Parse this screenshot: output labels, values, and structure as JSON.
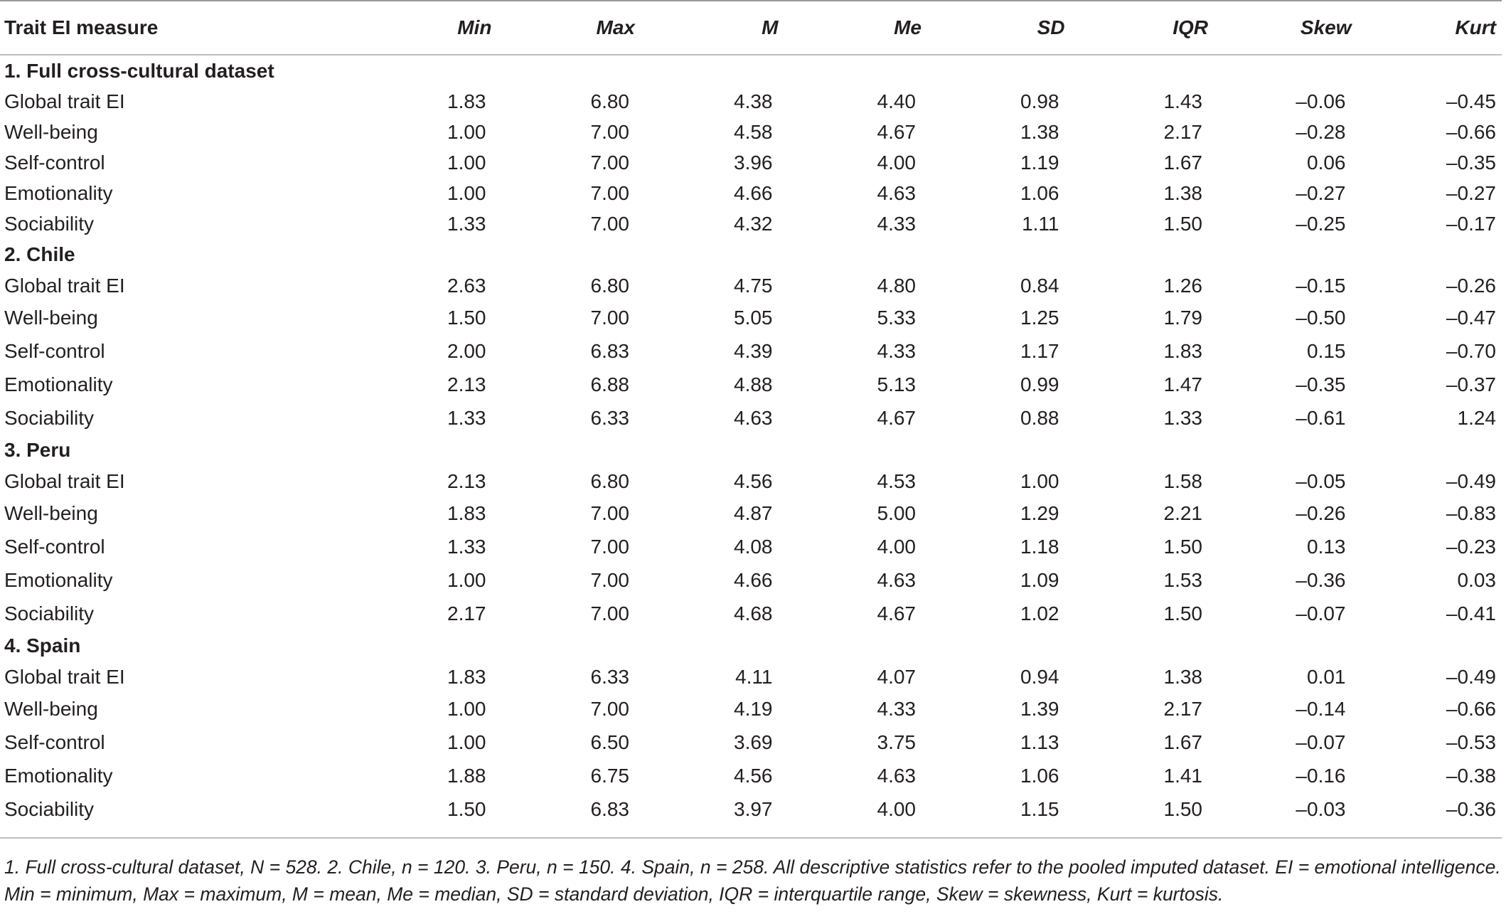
{
  "table": {
    "headers": [
      "Trait EI measure",
      "Min",
      "Max",
      "M",
      "Me",
      "SD",
      "IQR",
      "Skew",
      "Kurt"
    ],
    "groups": [
      {
        "label": "1. Full cross-cultural dataset",
        "rows": [
          {
            "label": "Global trait EI",
            "values": [
              "1.83",
              "6.80",
              "4.38",
              "4.40",
              "0.98",
              "1.43",
              "–0.06",
              "–0.45"
            ]
          },
          {
            "label": "Well-being",
            "values": [
              "1.00",
              "7.00",
              "4.58",
              "4.67",
              "1.38",
              "2.17",
              "–0.28",
              "–0.66"
            ]
          },
          {
            "label": "Self-control",
            "values": [
              "1.00",
              "7.00",
              "3.96",
              "4.00",
              "1.19",
              "1.67",
              "0.06",
              "–0.35"
            ]
          },
          {
            "label": "Emotionality",
            "values": [
              "1.00",
              "7.00",
              "4.66",
              "4.63",
              "1.06",
              "1.38",
              "–0.27",
              "–0.27"
            ]
          },
          {
            "label": "Sociability",
            "values": [
              "1.33",
              "7.00",
              "4.32",
              "4.33",
              "1.11",
              "1.50",
              "–0.25",
              "–0.17"
            ]
          }
        ]
      },
      {
        "label": "2. Chile",
        "rows": [
          {
            "label": "Global trait EI",
            "values": [
              "2.63",
              "6.80",
              "4.75",
              "4.80",
              "0.84",
              "1.26",
              "–0.15",
              "–0.26"
            ]
          },
          {
            "label": "Well-being",
            "values": [
              "1.50",
              "7.00",
              "5.05",
              "5.33",
              "1.25",
              "1.79",
              "–0.50",
              "–0.47"
            ]
          },
          {
            "label": "Self-control",
            "values": [
              "2.00",
              "6.83",
              "4.39",
              "4.33",
              "1.17",
              "1.83",
              "0.15",
              "–0.70"
            ]
          },
          {
            "label": "Emotionality",
            "values": [
              "2.13",
              "6.88",
              "4.88",
              "5.13",
              "0.99",
              "1.47",
              "–0.35",
              "–0.37"
            ]
          },
          {
            "label": "Sociability",
            "values": [
              "1.33",
              "6.33",
              "4.63",
              "4.67",
              "0.88",
              "1.33",
              "–0.61",
              "1.24"
            ]
          }
        ]
      },
      {
        "label": "3. Peru",
        "rows": [
          {
            "label": "Global trait EI",
            "values": [
              "2.13",
              "6.80",
              "4.56",
              "4.53",
              "1.00",
              "1.58",
              "–0.05",
              "–0.49"
            ]
          },
          {
            "label": "Well-being",
            "values": [
              "1.83",
              "7.00",
              "4.87",
              "5.00",
              "1.29",
              "2.21",
              "–0.26",
              "–0.83"
            ]
          },
          {
            "label": "Self-control",
            "values": [
              "1.33",
              "7.00",
              "4.08",
              "4.00",
              "1.18",
              "1.50",
              "0.13",
              "–0.23"
            ]
          },
          {
            "label": "Emotionality",
            "values": [
              "1.00",
              "7.00",
              "4.66",
              "4.63",
              "1.09",
              "1.53",
              "–0.36",
              "0.03"
            ]
          },
          {
            "label": "Sociability",
            "values": [
              "2.17",
              "7.00",
              "4.68",
              "4.67",
              "1.02",
              "1.50",
              "–0.07",
              "–0.41"
            ]
          }
        ]
      },
      {
        "label": "4. Spain",
        "rows": [
          {
            "label": "Global trait EI",
            "values": [
              "1.83",
              "6.33",
              "4.11",
              "4.07",
              "0.94",
              "1.38",
              "0.01",
              "–0.49"
            ]
          },
          {
            "label": "Well-being",
            "values": [
              "1.00",
              "7.00",
              "4.19",
              "4.33",
              "1.39",
              "2.17",
              "–0.14",
              "–0.66"
            ]
          },
          {
            "label": "Self-control",
            "values": [
              "1.00",
              "6.50",
              "3.69",
              "3.75",
              "1.13",
              "1.67",
              "–0.07",
              "–0.53"
            ]
          },
          {
            "label": "Emotionality",
            "values": [
              "1.88",
              "6.75",
              "4.56",
              "4.63",
              "1.06",
              "1.41",
              "–0.16",
              "–0.38"
            ]
          },
          {
            "label": "Sociability",
            "values": [
              "1.50",
              "6.83",
              "3.97",
              "4.00",
              "1.15",
              "1.50",
              "–0.03",
              "–0.36"
            ]
          }
        ]
      }
    ]
  },
  "footnote": "1. Full cross-cultural dataset, N = 528. 2. Chile, n = 120. 3. Peru, n = 150. 4. Spain, n = 258. All descriptive statistics refer to the pooled imputed dataset. EI = emotional intelligence. Min = minimum, Max = maximum, M = mean, Me = median, SD = standard deviation, IQR = interquartile range, Skew = skewness, Kurt = kurtosis."
}
